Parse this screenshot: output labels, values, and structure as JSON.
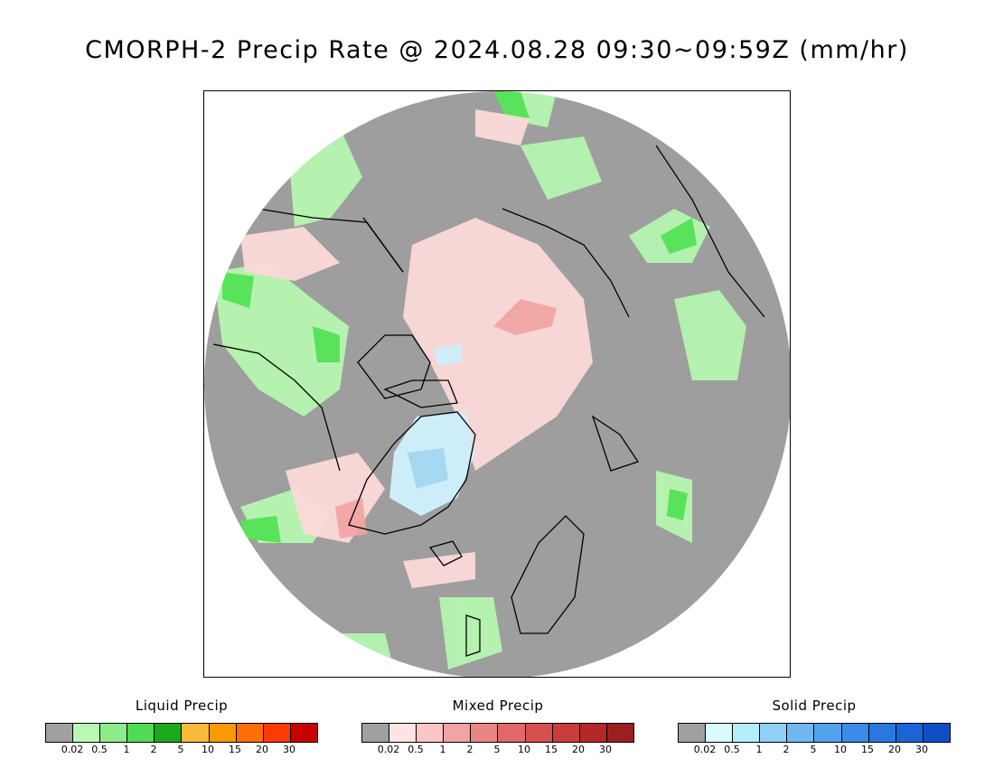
{
  "title": "CMORPH-2 Precip Rate @ 2024.08.28 09:30~09:59Z (mm/hr)",
  "colors": {
    "no_precip": "#9e9e9e",
    "coast": "#000000",
    "liquid_light": "#b6f5b0",
    "liquid_mid": "#58e35a",
    "mixed_light": "#fcd9d9",
    "mixed_mid": "#f2a3a3",
    "solid_light": "#cdeef8",
    "solid_mid": "#a6d8f2"
  },
  "legends": [
    {
      "title": "Liquid Precip",
      "colors": [
        "#a0a0a0",
        "#baf7b5",
        "#8deb89",
        "#4fdc53",
        "#1ea81e",
        "#fbb93b",
        "#fb9a06",
        "#fb6f06",
        "#fb3a06",
        "#c80000"
      ],
      "ticks": [
        "0.02",
        "0.5",
        "1",
        "2",
        "5",
        "10",
        "15",
        "20",
        "30"
      ]
    },
    {
      "title": "Mixed Precip",
      "colors": [
        "#a0a0a0",
        "#fde3e3",
        "#fbc6c6",
        "#f2a3a3",
        "#ea8585",
        "#e06868",
        "#d65050",
        "#c83c3c",
        "#b42828",
        "#9b1f1f"
      ],
      "ticks": [
        "0.02",
        "0.5",
        "1",
        "2",
        "5",
        "10",
        "15",
        "20",
        "30"
      ]
    },
    {
      "title": "Solid Precip",
      "colors": [
        "#a0a0a0",
        "#dbfbfb",
        "#b1eefa",
        "#8fd0f7",
        "#70b8f2",
        "#52a3ee",
        "#3a8ce8",
        "#2878e0",
        "#1b64d6",
        "#0e4fc6"
      ],
      "ticks": [
        "0.02",
        "0.5",
        "1",
        "2",
        "5",
        "10",
        "15",
        "20",
        "30"
      ]
    }
  ]
}
